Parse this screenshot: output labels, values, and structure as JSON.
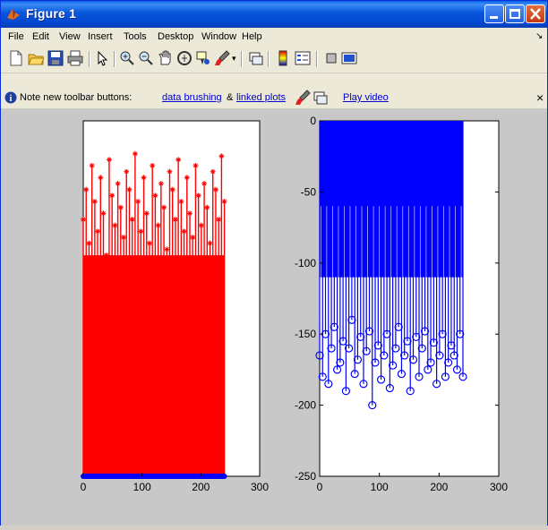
{
  "window": {
    "title": "Figure 1",
    "colors": {
      "titlebar": "#0a55dd",
      "figure_bg": "#c8c8c8",
      "red": "#ff0000",
      "blue": "#0000ff"
    }
  },
  "menu": [
    "File",
    "Edit",
    "View",
    "Insert",
    "Tools",
    "Desktop",
    "Window",
    "Help"
  ],
  "menu_arrow": "↘",
  "toolbar_icons": [
    "new-figure-icon",
    "open-file-icon",
    "save-icon",
    "print-icon",
    "pointer-icon",
    "zoom-in-icon",
    "zoom-out-icon",
    "pan-icon",
    "rotate-3d-icon",
    "data-cursor-icon",
    "brush-icon",
    "dropdown-arrow-icon",
    "link-plot-icon",
    "colorbar-icon",
    "legend-icon",
    "hide-plot-tools-icon",
    "show-plot-tools-icon"
  ],
  "infobar": {
    "note": "Note new toolbar buttons:",
    "link1": "data brushing",
    "amp": "&",
    "link2": "linked plots",
    "link3": "Play video",
    "close": "×"
  },
  "chart_data": [
    {
      "type": "stem",
      "color": "#ff0000",
      "marker": "*",
      "baseline_marker": "o (blue)",
      "x_range": [
        0,
        240
      ],
      "xlim": [
        0,
        300
      ],
      "xticks": [
        "0",
        "100",
        "200",
        "300"
      ],
      "yticks": [],
      "value_envelope": "values roughly 180–280 (axis top unlabeled), densest near 230",
      "samples": [
        215,
        240,
        195,
        260,
        230,
        205,
        250,
        220,
        185,
        265,
        235,
        210,
        245,
        225,
        200,
        255,
        240,
        215,
        270,
        230,
        205,
        250,
        220,
        195,
        260,
        235,
        210,
        245,
        225,
        190,
        255,
        240,
        215,
        265,
        230,
        205,
        250,
        220,
        200,
        260,
        235,
        210,
        245,
        225,
        195,
        255,
        240,
        215,
        268,
        230
      ]
    },
    {
      "type": "stem",
      "color": "#0000ff",
      "marker": "o",
      "x_range": [
        0,
        240
      ],
      "xlim": [
        0,
        300
      ],
      "ylim": [
        -250,
        0
      ],
      "xticks": [
        "0",
        "100",
        "200",
        "300"
      ],
      "yticks": [
        "0",
        "-50",
        "-100",
        "-150",
        "-200",
        "-250"
      ],
      "samples": [
        -165,
        -180,
        -150,
        -185,
        -160,
        -145,
        -175,
        -170,
        -155,
        -190,
        -160,
        -140,
        -178,
        -168,
        -152,
        -185,
        -162,
        -148,
        -200,
        -170,
        -158,
        -182,
        -165,
        -150,
        -188,
        -172,
        -160,
        -145,
        -178,
        -165,
        -155,
        -190,
        -168,
        -152,
        -180,
        -160,
        -148,
        -175,
        -170,
        -156,
        -185,
        -165,
        -150,
        -180,
        -170,
        -158,
        -165,
        -175,
        -150,
        -180
      ]
    }
  ]
}
